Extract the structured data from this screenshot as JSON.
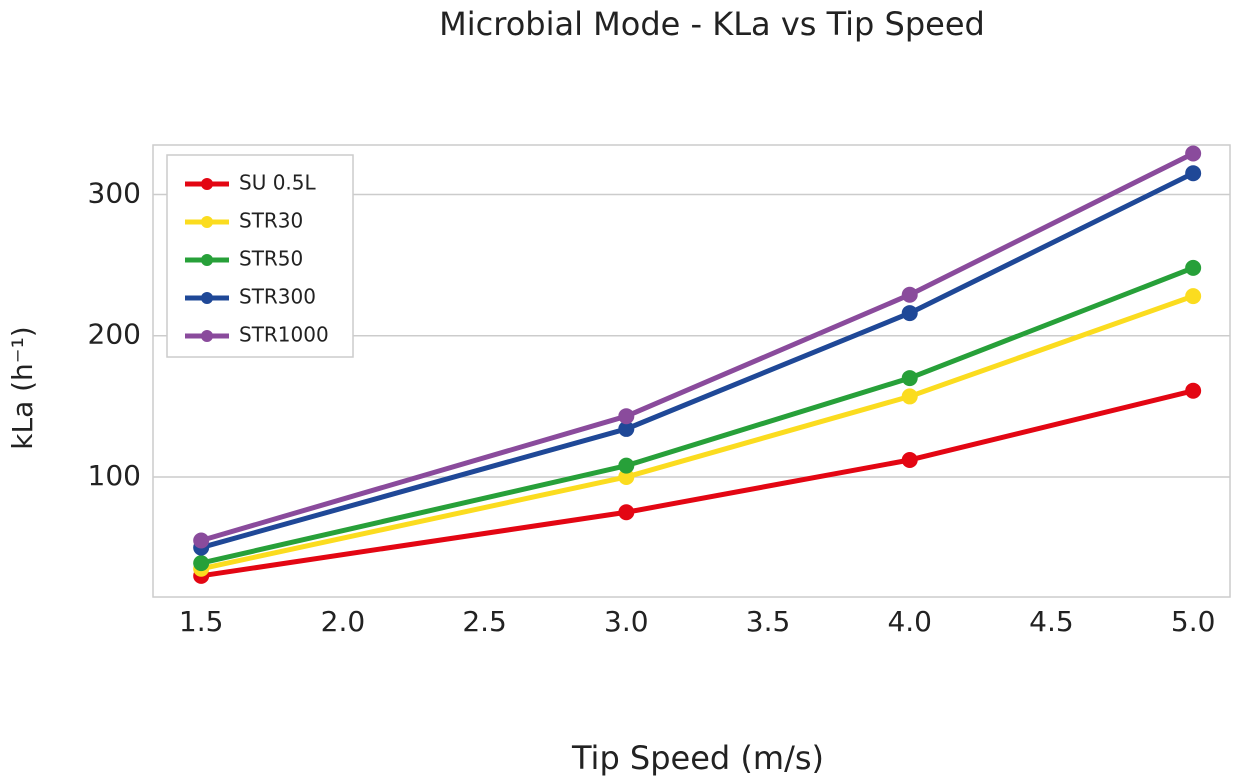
{
  "chart_data": {
    "type": "line",
    "title": "Microbial Mode - KLa vs Tip Speed",
    "x_label": "Tip Speed (m/s)",
    "y_label": "kLa (h⁻¹)",
    "x": [
      1.5,
      3.0,
      4.0,
      5.0
    ],
    "series": [
      {
        "name": "SU 0.5L",
        "color": "#e30613",
        "values": [
          30,
          75,
          112,
          161
        ]
      },
      {
        "name": "STR30",
        "color": "#fbdc1f",
        "values": [
          35,
          100,
          157,
          228
        ]
      },
      {
        "name": "STR50",
        "color": "#27a039",
        "values": [
          39,
          108,
          170,
          248
        ]
      },
      {
        "name": "STR300",
        "color": "#1f4897",
        "values": [
          50,
          134,
          216,
          315
        ]
      },
      {
        "name": "STR1000",
        "color": "#8a4b9c",
        "values": [
          55,
          143,
          229,
          329
        ]
      }
    ],
    "xlim": [
      1.33,
      5.13
    ],
    "ylim": [
      15,
      335
    ],
    "xticks": [
      1.5,
      {
        "value": 2,
        "label": "2.0"
      },
      2.5,
      {
        "value": 3,
        "label": "3.0"
      },
      3.5,
      {
        "value": 4,
        "label": "4.0"
      },
      4.5,
      {
        "value": 5,
        "label": "5.0"
      }
    ],
    "yticks": [
      100,
      200,
      300
    ],
    "grid": "y",
    "legend": "upper-left"
  }
}
